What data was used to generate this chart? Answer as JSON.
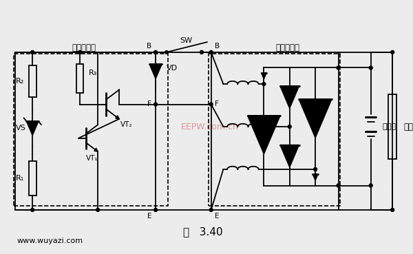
{
  "title": "图   3.40",
  "watermark": "EEPW.com.cn",
  "website": "www.wuyazi.com",
  "bg_color": "#ececec",
  "box1_label": "电子调节器",
  "box2_label": "交流发电机",
  "labels": {
    "R2": "R₂",
    "R3": "R₃",
    "VS": "VS",
    "VT1": "VT₁",
    "VT2": "VT₂",
    "VD": "VD",
    "B_left": "B",
    "B_right": "B",
    "F_left": "F",
    "F_right": "F",
    "E_left": "E",
    "E_right": "E",
    "SW": "SW",
    "R1": "R₁",
    "battery_label": "蓄电池",
    "load_label": "负载"
  }
}
